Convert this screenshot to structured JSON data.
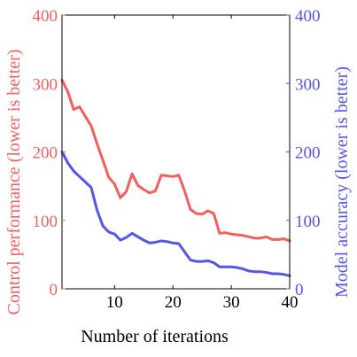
{
  "chart_data": {
    "type": "line",
    "xlabel": "Number of iterations",
    "ylabel_left": "Control performance (lower is better)",
    "ylabel_right": "Model accuracy (lower is better)",
    "xlim": [
      1,
      40
    ],
    "ylim_left": [
      0,
      400
    ],
    "ylim_right": [
      0,
      400
    ],
    "x_ticks": [
      10,
      20,
      30,
      40
    ],
    "y_ticks_left": [
      0,
      100,
      200,
      300,
      400
    ],
    "y_ticks_right": [
      0,
      100,
      200,
      300,
      400
    ],
    "grid": false,
    "colors": {
      "left": "#f25f5f",
      "right": "#5555ee",
      "frame": "#000000"
    },
    "series": [
      {
        "axis": "left",
        "color": "#f25f5f",
        "x": [
          1,
          2,
          3,
          4,
          5,
          6,
          7,
          8,
          9,
          10,
          11,
          12,
          13,
          14,
          15,
          16,
          17,
          18,
          19,
          20,
          21,
          22,
          23,
          24,
          25,
          26,
          27,
          28,
          29,
          30,
          31,
          32,
          33,
          34,
          35,
          36,
          37,
          38,
          39,
          40
        ],
        "values": [
          305,
          288,
          262,
          266,
          252,
          238,
          212,
          188,
          163,
          153,
          133,
          142,
          168,
          151,
          145,
          140,
          143,
          166,
          165,
          164,
          166,
          143,
          116,
          110,
          109,
          114,
          110,
          81,
          82,
          80,
          79,
          78,
          76,
          74,
          74,
          76,
          72,
          72,
          73,
          70
        ]
      },
      {
        "axis": "right",
        "color": "#5555ee",
        "x": [
          1,
          2,
          3,
          4,
          5,
          6,
          7,
          8,
          9,
          10,
          11,
          12,
          13,
          14,
          15,
          16,
          17,
          18,
          19,
          20,
          21,
          22,
          23,
          24,
          25,
          26,
          27,
          28,
          29,
          30,
          31,
          32,
          33,
          34,
          35,
          36,
          37,
          38,
          39,
          40
        ],
        "values": [
          200,
          184,
          172,
          164,
          156,
          148,
          115,
          92,
          83,
          80,
          71,
          75,
          81,
          76,
          71,
          67,
          68,
          70,
          69,
          67,
          66,
          54,
          42,
          40,
          40,
          41,
          38,
          32,
          32,
          32,
          31,
          29,
          26,
          25,
          25,
          24,
          22,
          22,
          21,
          19
        ]
      }
    ]
  }
}
